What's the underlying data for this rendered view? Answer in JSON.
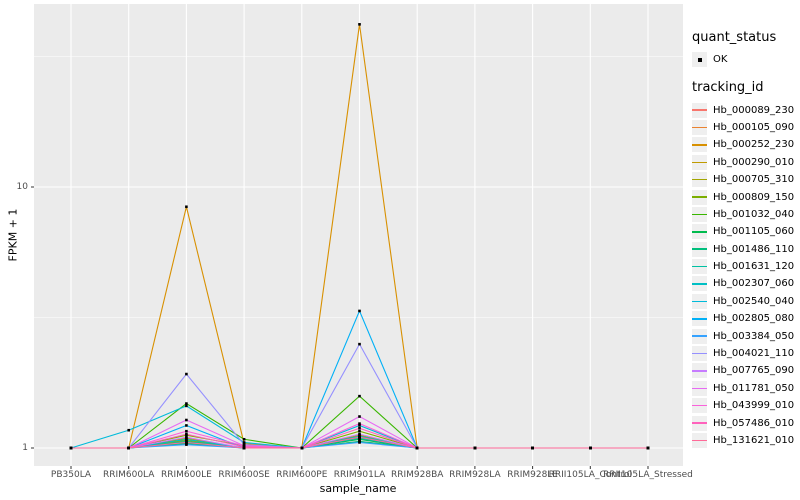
{
  "colors": {
    "background": "#FFFFFF",
    "panel_bg": "#EBEBEB",
    "grid_major": "#FFFFFF",
    "grid_minor": "#FFFFFF",
    "axis_text": "#4D4D4D",
    "tick_mark": "#333333",
    "legend_key_bg": "#EFEFEF",
    "point": "#000000"
  },
  "legend": {
    "quant_status": {
      "title": "quant_status",
      "items": [
        {
          "label": "OK",
          "marker": "square",
          "color": "#000000"
        }
      ]
    },
    "tracking_id": {
      "title": "tracking_id"
    }
  },
  "chart_data": {
    "type": "line",
    "title": "",
    "xlabel": "sample_name",
    "ylabel": "FPKM + 1",
    "y_scale": "log10",
    "grid": true,
    "legend_position": "right",
    "ylim": [
      0.85,
      50
    ],
    "y_ticks": [
      1,
      10
    ],
    "y_tick_labels": [
      "1",
      "10"
    ],
    "y_minor_ticks": [
      3.162,
      31.62
    ],
    "point_color": "#000000",
    "categories": [
      "PB350LA",
      "RRIM600LA",
      "RRIM600LE",
      "RRIM600SE",
      "RRIM600PE",
      "RRIM901LA",
      "RRIM928BA",
      "RRIM928LA",
      "RRIM928LE",
      "RRII105LA_Control",
      "RRII105LA_Stressed"
    ],
    "series": [
      {
        "name": "Hb_000089_230",
        "color": "#F8766D",
        "values": [
          1,
          1,
          1.04,
          1,
          1,
          1.06,
          1,
          1,
          1,
          1,
          1
        ]
      },
      {
        "name": "Hb_000105_090",
        "color": "#EA8331",
        "values": [
          1,
          1,
          1.06,
          1,
          1,
          1.09,
          1,
          1,
          1,
          1,
          1
        ]
      },
      {
        "name": "Hb_000252_230",
        "color": "#D89000",
        "values": [
          1,
          1,
          8.4,
          1.04,
          1,
          42,
          1,
          1,
          1,
          1,
          1
        ]
      },
      {
        "name": "Hb_000290_010",
        "color": "#C09B00",
        "values": [
          1,
          1,
          1.09,
          1,
          1,
          1.12,
          1,
          1,
          1,
          1,
          1
        ]
      },
      {
        "name": "Hb_000705_310",
        "color": "#A3A500",
        "values": [
          1,
          1,
          1.07,
          1,
          1,
          1.1,
          1,
          1,
          1,
          1,
          1
        ]
      },
      {
        "name": "Hb_000809_150",
        "color": "#7CAE00",
        "values": [
          1,
          1,
          1.12,
          1.02,
          1,
          1.16,
          1,
          1,
          1,
          1,
          1
        ]
      },
      {
        "name": "Hb_001032_040",
        "color": "#39B600",
        "values": [
          1,
          1,
          1.48,
          1.08,
          1,
          1.58,
          1,
          1,
          1,
          1,
          1
        ]
      },
      {
        "name": "Hb_001105_060",
        "color": "#00BB4E",
        "values": [
          1,
          1,
          1.05,
          1,
          1,
          1.08,
          1,
          1,
          1,
          1,
          1
        ]
      },
      {
        "name": "Hb_001486_110",
        "color": "#00BF7D",
        "values": [
          1,
          1,
          1.04,
          1,
          1,
          1.06,
          1,
          1,
          1,
          1,
          1
        ]
      },
      {
        "name": "Hb_001631_120",
        "color": "#00C1A3",
        "values": [
          1,
          1,
          1.06,
          1,
          1,
          1.09,
          1,
          1,
          1,
          1,
          1
        ]
      },
      {
        "name": "Hb_002307_060",
        "color": "#00BFC4",
        "values": [
          1,
          1,
          1.08,
          1,
          1,
          1.11,
          1,
          1,
          1,
          1,
          1
        ]
      },
      {
        "name": "Hb_002540_040",
        "color": "#00BBDA",
        "values": [
          1,
          1.17,
          1.45,
          1.05,
          1,
          1.22,
          1,
          1,
          1,
          1,
          1
        ]
      },
      {
        "name": "Hb_002805_080",
        "color": "#00B0F6",
        "values": [
          1,
          1,
          1.22,
          1,
          1,
          3.35,
          1,
          1,
          1,
          1,
          1
        ]
      },
      {
        "name": "Hb_003384_050",
        "color": "#35A2FF",
        "values": [
          1,
          1,
          1.03,
          1,
          1,
          1.05,
          1,
          1,
          1,
          1,
          1
        ]
      },
      {
        "name": "Hb_004021_110",
        "color": "#9590FF",
        "values": [
          1,
          1,
          1.92,
          1.03,
          1,
          2.5,
          1,
          1,
          1,
          1,
          1
        ]
      },
      {
        "name": "Hb_007765_090",
        "color": "#C77CFF",
        "values": [
          1,
          1,
          1.1,
          1,
          1,
          1.13,
          1,
          1,
          1,
          1,
          1
        ]
      },
      {
        "name": "Hb_011781_050",
        "color": "#E76BF3",
        "values": [
          1,
          1,
          1.28,
          1.02,
          1,
          1.32,
          1,
          1,
          1,
          1,
          1
        ]
      },
      {
        "name": "Hb_043999_010",
        "color": "#FA62DB",
        "values": [
          1,
          1,
          1.16,
          1.02,
          1,
          1.24,
          1,
          1,
          1,
          1,
          1
        ]
      },
      {
        "name": "Hb_057486_010",
        "color": "#FF62BC",
        "values": [
          1,
          1,
          1.13,
          1.01,
          1,
          1.19,
          1,
          1,
          1,
          1,
          1
        ]
      },
      {
        "name": "Hb_131621_010",
        "color": "#FF6A98",
        "values": [
          1,
          1,
          1.05,
          1,
          1,
          1.1,
          1,
          1,
          1,
          1,
          1
        ]
      }
    ]
  }
}
